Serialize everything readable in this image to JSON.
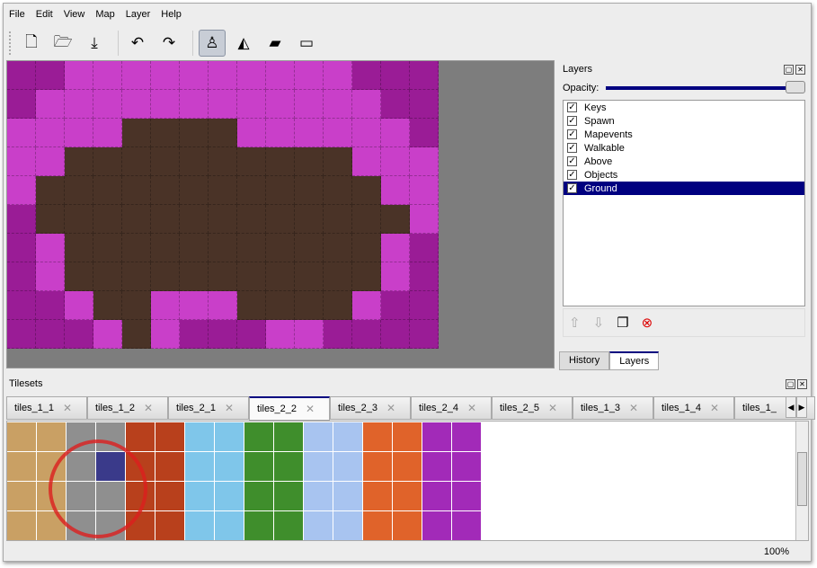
{
  "menu": [
    "File",
    "Edit",
    "View",
    "Map",
    "Layer",
    "Help"
  ],
  "toolbar": [
    {
      "name": "new-icon",
      "glyph": "🗋"
    },
    {
      "name": "open-icon",
      "glyph": "🗁"
    },
    {
      "name": "save-icon",
      "glyph": "⤓"
    },
    {
      "name": "undo-icon",
      "glyph": "↶"
    },
    {
      "name": "redo-icon",
      "glyph": "↷"
    },
    {
      "name": "stamp-brush-icon",
      "glyph": "♙",
      "active": true
    },
    {
      "name": "bucket-fill-icon",
      "glyph": "◭"
    },
    {
      "name": "eraser-icon",
      "glyph": "▰"
    },
    {
      "name": "rect-select-icon",
      "glyph": "▭"
    }
  ],
  "map": {
    "palette": {
      "m": "#c93fc9",
      "d": "#9a1c96",
      "b": "#4a3327"
    },
    "rows": [
      "ddmmmmmmmmmmddd",
      "dmmmmmmmmmmmmdd",
      "mmmmbbbbmmmmmmd",
      "mmbbbbbbbbbbmmm",
      "mbbbbbbbbbbbbmm",
      "dbbbbbbbbbbbbbm",
      "dmbbbbbbbbbbbmd",
      "dmbbbbbbbbbbbmd",
      "ddmbbmmmbbbbmdd",
      "dddmbmdddmmdddd"
    ]
  },
  "layers": {
    "title": "Layers",
    "opacity_label": "Opacity:",
    "opacity": 1.0,
    "items": [
      {
        "label": "Keys"
      },
      {
        "label": "Spawn"
      },
      {
        "label": "Mapevents"
      },
      {
        "label": "Walkable"
      },
      {
        "label": "Above"
      },
      {
        "label": "Objects"
      },
      {
        "label": "Ground",
        "selected": true
      }
    ],
    "tabs": [
      "History",
      "Layers"
    ],
    "active_tab": "Layers"
  },
  "tilesets": {
    "title": "Tilesets",
    "tabs": [
      "tiles_1_1",
      "tiles_1_2",
      "tiles_2_1",
      "tiles_2_2",
      "tiles_2_3",
      "tiles_2_4",
      "tiles_2_5",
      "tiles_1_3",
      "tiles_1_4",
      "tiles_1_"
    ],
    "active_tab": "tiles_2_2",
    "column_colors": [
      "#c9a064",
      "#c9a064",
      "#8f8f8f",
      "#8f8f8f",
      "#b8401c",
      "#b8401c",
      "#7fc6ea",
      "#7fc6ea",
      "#3f8e2c",
      "#3f8e2c",
      "#a8c4f0",
      "#a8c4f0",
      "#e0632a",
      "#e0632a",
      "#a22ab8",
      "#a22ab8"
    ]
  },
  "status": {
    "zoom": "100%"
  }
}
